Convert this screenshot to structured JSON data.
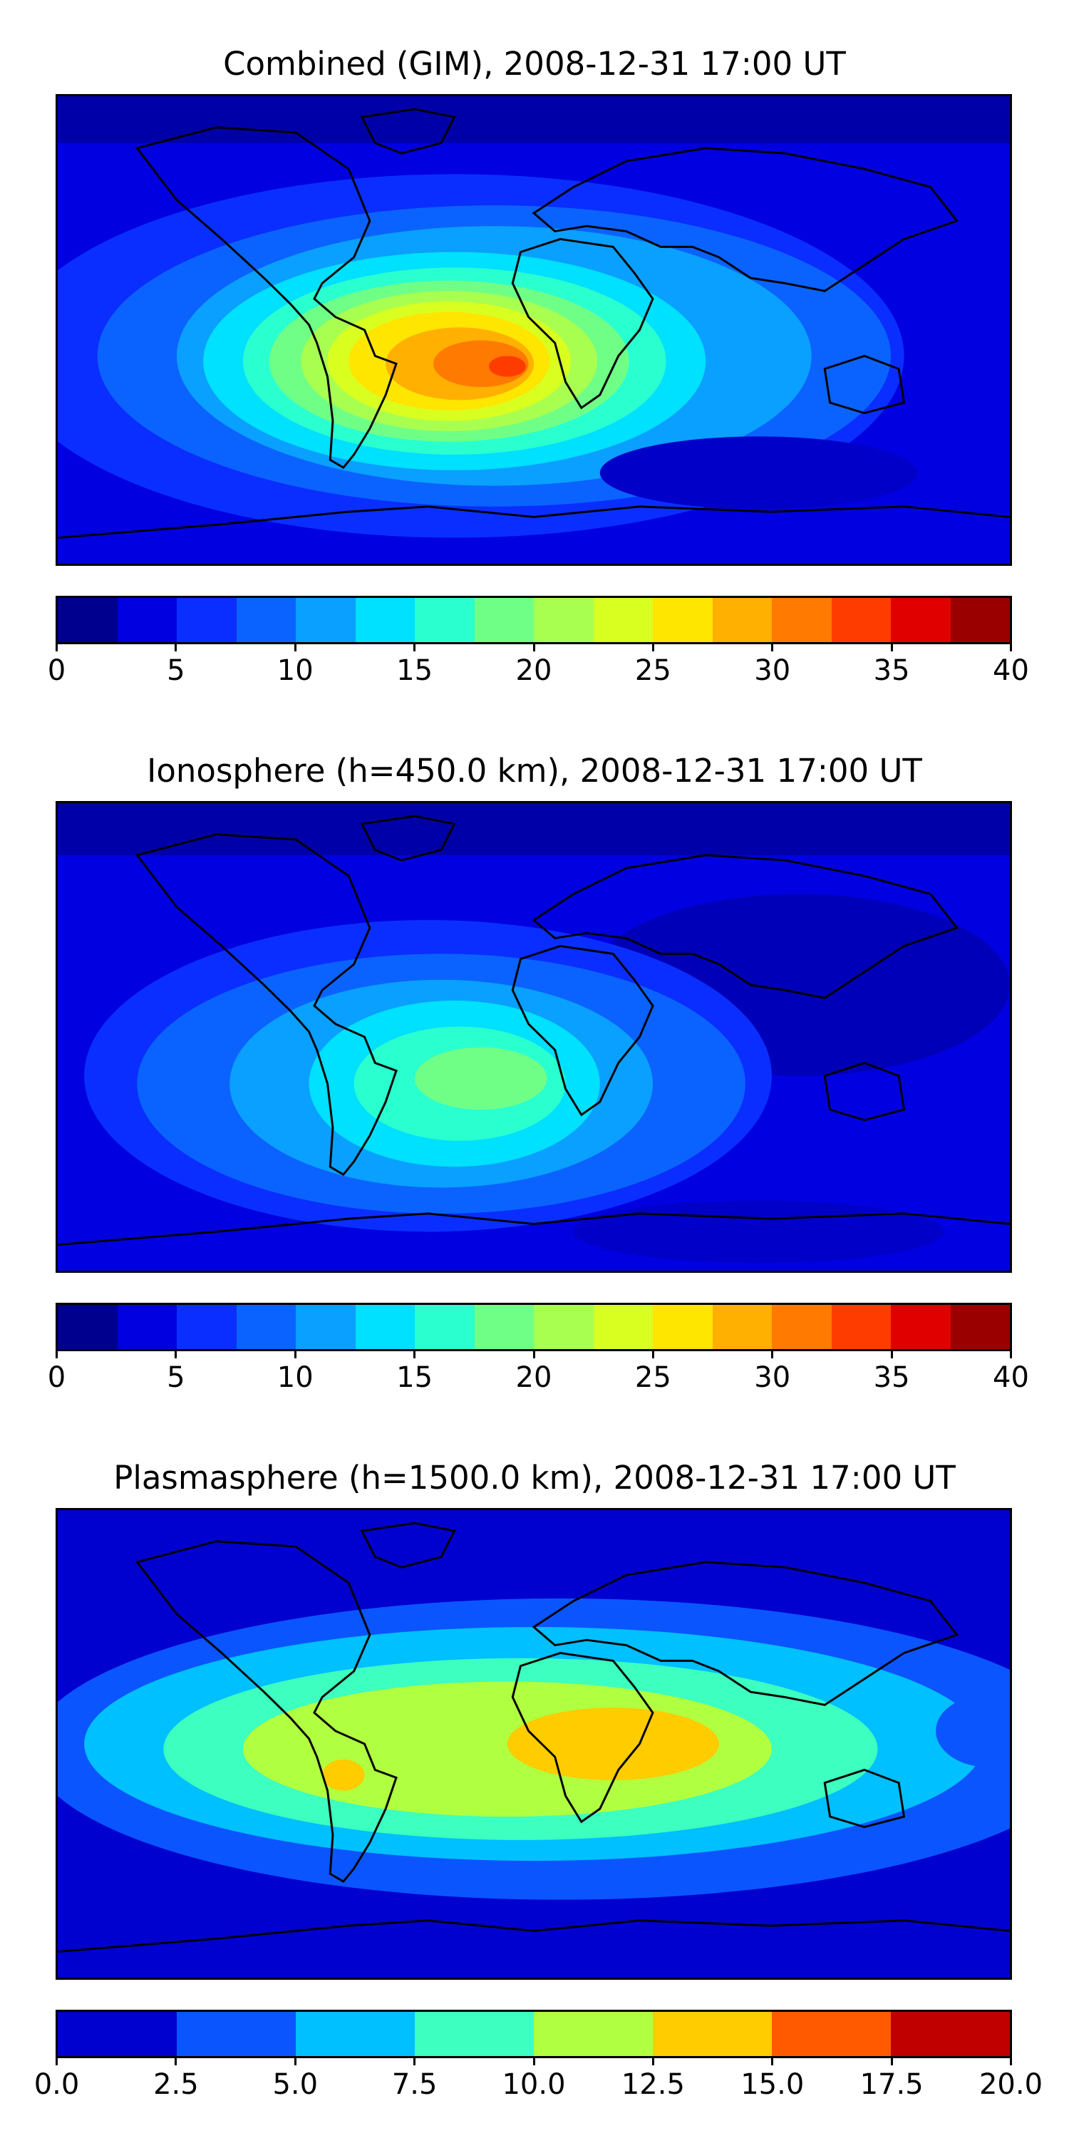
{
  "panels": [
    {
      "title": "Combined (GIM), 2008-12-31 17:00 UT",
      "colorbar": {
        "colors": [
          "#00008f",
          "#0000e0",
          "#0a2eff",
          "#0b63ff",
          "#0aa0ff",
          "#00e0ff",
          "#2affd0",
          "#70ff86",
          "#a8ff50",
          "#d8ff20",
          "#ffe600",
          "#ffb000",
          "#ff7a00",
          "#ff3c00",
          "#e00000",
          "#9b0000"
        ],
        "ticks": [
          "0",
          "5",
          "10",
          "15",
          "20",
          "25",
          "30",
          "35",
          "40"
        ]
      }
    },
    {
      "title": "Ionosphere  (h=450.0 km), 2008-12-31 17:00 UT",
      "colorbar": {
        "colors": [
          "#00008f",
          "#0000e0",
          "#0a2eff",
          "#0b63ff",
          "#0aa0ff",
          "#00e0ff",
          "#2affd0",
          "#70ff86",
          "#a8ff50",
          "#d8ff20",
          "#ffe600",
          "#ffb000",
          "#ff7a00",
          "#ff3c00",
          "#e00000",
          "#9b0000"
        ],
        "ticks": [
          "0",
          "5",
          "10",
          "15",
          "20",
          "25",
          "30",
          "35",
          "40"
        ]
      }
    },
    {
      "title": "Plasmasphere (h=1500.0 km), 2008-12-31 17:00 UT",
      "colorbar": {
        "colors": [
          "#0000cf",
          "#0b55ff",
          "#00c0ff",
          "#3cffc0",
          "#b0ff40",
          "#ffcc00",
          "#ff5a00",
          "#c00000"
        ],
        "ticks": [
          "0.0",
          "2.5",
          "5.0",
          "7.5",
          "10.0",
          "12.5",
          "15.0",
          "17.5",
          "20.0"
        ]
      }
    }
  ]
}
